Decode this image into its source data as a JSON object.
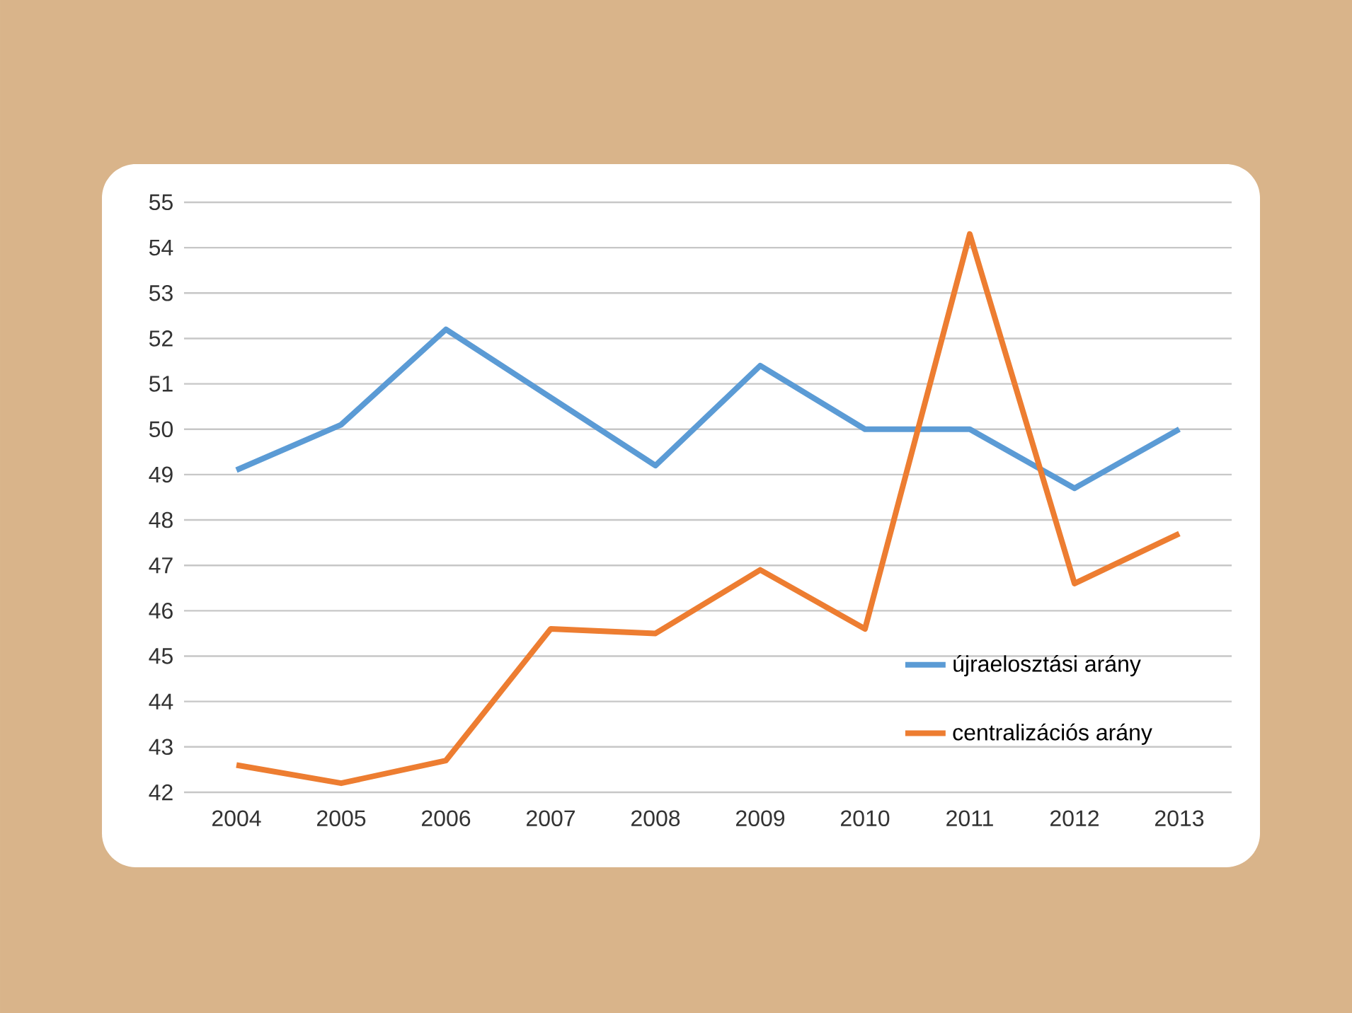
{
  "chart_data": {
    "type": "line",
    "categories": [
      "2004",
      "2005",
      "2006",
      "2007",
      "2008",
      "2009",
      "2010",
      "2011",
      "2012",
      "2013"
    ],
    "series": [
      {
        "name": "újraelosztási arány",
        "color": "#5b9bd5",
        "values": [
          49.1,
          50.1,
          52.2,
          50.7,
          49.2,
          51.4,
          50.0,
          50.0,
          48.7,
          50.0
        ]
      },
      {
        "name": "centralizációs arány",
        "color": "#ed7d31",
        "values": [
          42.6,
          42.2,
          42.7,
          45.6,
          45.5,
          46.9,
          45.6,
          54.3,
          46.6,
          47.7
        ]
      }
    ],
    "ylim": [
      42,
      55
    ],
    "yticks": [
      42,
      43,
      44,
      45,
      46,
      47,
      48,
      49,
      50,
      51,
      52,
      53,
      54,
      55
    ],
    "grid": "y",
    "legend": "bottom right",
    "line_style": "solid",
    "marker": "none"
  }
}
